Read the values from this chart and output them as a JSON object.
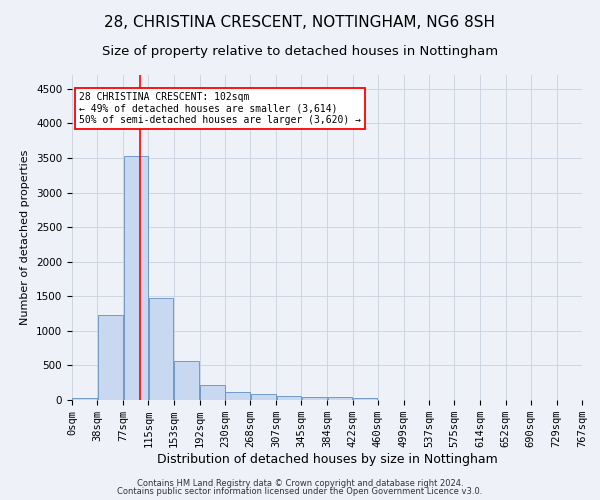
{
  "title1": "28, CHRISTINA CRESCENT, NOTTINGHAM, NG6 8SH",
  "title2": "Size of property relative to detached houses in Nottingham",
  "xlabel": "Distribution of detached houses by size in Nottingham",
  "ylabel": "Number of detached properties",
  "footer1": "Contains HM Land Registry data © Crown copyright and database right 2024.",
  "footer2": "Contains public sector information licensed under the Open Government Licence v3.0.",
  "bin_edges": [
    0,
    38,
    77,
    115,
    153,
    192,
    230,
    268,
    307,
    345,
    384,
    422,
    460,
    499,
    537,
    575,
    614,
    652,
    690,
    729,
    767
  ],
  "bin_labels": [
    "0sqm",
    "38sqm",
    "77sqm",
    "115sqm",
    "153sqm",
    "192sqm",
    "230sqm",
    "268sqm",
    "307sqm",
    "345sqm",
    "384sqm",
    "422sqm",
    "460sqm",
    "499sqm",
    "537sqm",
    "575sqm",
    "614sqm",
    "652sqm",
    "690sqm",
    "729sqm",
    "767sqm"
  ],
  "bar_heights": [
    30,
    1230,
    3530,
    1470,
    570,
    220,
    110,
    85,
    60,
    50,
    45,
    30,
    5,
    0,
    0,
    0,
    5,
    0,
    0,
    0
  ],
  "bar_color": "#c8d8f0",
  "bar_edge_color": "#6090c0",
  "grid_color": "#c8d0e0",
  "background_color": "#eef2f8",
  "vline_x": 102,
  "vline_color": "red",
  "ylim": [
    0,
    4700
  ],
  "yticks": [
    0,
    500,
    1000,
    1500,
    2000,
    2500,
    3000,
    3500,
    4000,
    4500
  ],
  "annotation_text": "28 CHRISTINA CRESCENT: 102sqm\n← 49% of detached houses are smaller (3,614)\n50% of semi-detached houses are larger (3,620) →",
  "annotation_box_color": "white",
  "annotation_border_color": "red",
  "title1_fontsize": 11,
  "title2_fontsize": 9.5,
  "xlabel_fontsize": 9,
  "ylabel_fontsize": 8,
  "tick_fontsize": 7.5,
  "footer_fontsize": 6
}
